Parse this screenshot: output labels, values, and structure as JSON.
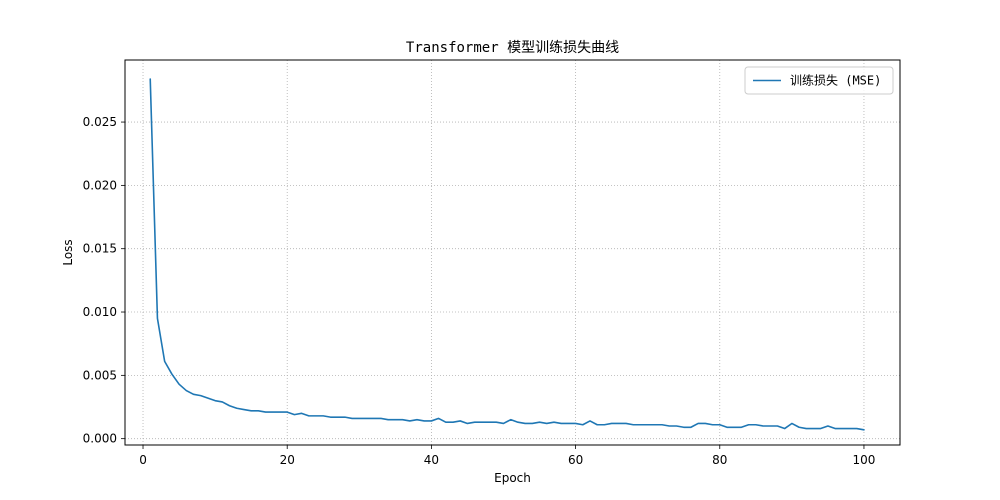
{
  "chart_data": {
    "type": "line",
    "title": "Transformer 模型训练损失曲线",
    "xlabel": "Epoch",
    "ylabel": "Loss",
    "xlim": [
      -2.5,
      105
    ],
    "ylim": [
      -0.0005,
      0.0299
    ],
    "xticks": [
      0,
      20,
      40,
      60,
      80,
      100
    ],
    "yticks": [
      0.0,
      0.005,
      0.01,
      0.015,
      0.02,
      0.025
    ],
    "ytick_labels": [
      "0.000",
      "0.005",
      "0.010",
      "0.015",
      "0.020",
      "0.025"
    ],
    "grid": true,
    "legend_position": "top-right",
    "series": [
      {
        "name": "训练损失 (MSE)",
        "color": "#1f77b4",
        "x": [
          1,
          2,
          3,
          4,
          5,
          6,
          7,
          8,
          9,
          10,
          11,
          12,
          13,
          14,
          15,
          16,
          17,
          18,
          19,
          20,
          21,
          22,
          23,
          24,
          25,
          26,
          27,
          28,
          29,
          30,
          31,
          32,
          33,
          34,
          35,
          36,
          37,
          38,
          39,
          40,
          41,
          42,
          43,
          44,
          45,
          46,
          47,
          48,
          49,
          50,
          51,
          52,
          53,
          54,
          55,
          56,
          57,
          58,
          59,
          60,
          61,
          62,
          63,
          64,
          65,
          66,
          67,
          68,
          69,
          70,
          71,
          72,
          73,
          74,
          75,
          76,
          77,
          78,
          79,
          80,
          81,
          82,
          83,
          84,
          85,
          86,
          87,
          88,
          89,
          90,
          91,
          92,
          93,
          94,
          95,
          96,
          97,
          98,
          99,
          100
        ],
        "values": [
          0.0284,
          0.0095,
          0.0061,
          0.0051,
          0.0043,
          0.0038,
          0.0035,
          0.0034,
          0.0032,
          0.003,
          0.0029,
          0.0026,
          0.0024,
          0.0023,
          0.0022,
          0.0022,
          0.0021,
          0.0021,
          0.0021,
          0.0021,
          0.0019,
          0.002,
          0.0018,
          0.0018,
          0.0018,
          0.0017,
          0.0017,
          0.0017,
          0.0016,
          0.0016,
          0.0016,
          0.0016,
          0.0016,
          0.0015,
          0.0015,
          0.0015,
          0.0014,
          0.0015,
          0.0014,
          0.0014,
          0.0016,
          0.0013,
          0.0013,
          0.0014,
          0.0012,
          0.0013,
          0.0013,
          0.0013,
          0.0013,
          0.0012,
          0.0015,
          0.0013,
          0.0012,
          0.0012,
          0.0013,
          0.0012,
          0.0013,
          0.0012,
          0.0012,
          0.0012,
          0.0011,
          0.0014,
          0.0011,
          0.0011,
          0.0012,
          0.0012,
          0.0012,
          0.0011,
          0.0011,
          0.0011,
          0.0011,
          0.0011,
          0.001,
          0.001,
          0.0009,
          0.0009,
          0.0012,
          0.0012,
          0.0011,
          0.0011,
          0.0009,
          0.0009,
          0.0009,
          0.0011,
          0.0011,
          0.001,
          0.001,
          0.001,
          0.0008,
          0.0012,
          0.0009,
          0.0008,
          0.0008,
          0.0008,
          0.001,
          0.0008,
          0.0008,
          0.0008,
          0.0008,
          0.0007
        ]
      }
    ]
  }
}
